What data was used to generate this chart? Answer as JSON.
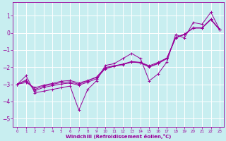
{
  "xlabel": "Windchill (Refroidissement éolien,°C)",
  "bg_color": "#c8eef0",
  "grid_color": "#ffffff",
  "line_color": "#990099",
  "xlim": [
    -0.5,
    23.5
  ],
  "ylim": [
    -5.5,
    1.8
  ],
  "xticks": [
    0,
    1,
    2,
    3,
    4,
    5,
    6,
    7,
    8,
    9,
    10,
    11,
    12,
    13,
    14,
    15,
    16,
    17,
    18,
    19,
    20,
    21,
    22,
    23
  ],
  "yticks": [
    -5,
    -4,
    -3,
    -2,
    -1,
    0,
    1
  ],
  "line1_x": [
    0,
    1,
    2,
    3,
    4,
    5,
    6,
    7,
    8,
    9,
    10,
    11,
    12,
    13,
    14,
    15,
    16,
    17,
    18,
    19,
    20,
    21,
    22,
    23
  ],
  "line1_y": [
    -3.0,
    -2.5,
    -3.5,
    -3.4,
    -3.3,
    -3.2,
    -3.1,
    -4.5,
    -3.3,
    -2.8,
    -1.9,
    -1.8,
    -1.5,
    -1.2,
    -1.5,
    -2.8,
    -2.4,
    -1.7,
    -0.1,
    -0.3,
    0.6,
    0.5,
    1.2,
    0.2
  ],
  "line2_x": [
    0,
    1,
    2,
    3,
    4,
    5,
    6,
    7,
    8,
    9,
    10,
    11,
    12,
    13,
    14,
    15,
    16,
    17,
    18,
    19,
    20,
    21,
    22,
    23
  ],
  "line2_y": [
    -3.0,
    -2.8,
    -3.3,
    -3.1,
    -3.0,
    -2.9,
    -2.85,
    -3.0,
    -2.8,
    -2.6,
    -2.1,
    -1.95,
    -1.85,
    -1.7,
    -1.75,
    -2.0,
    -1.8,
    -1.5,
    -0.3,
    -0.1,
    0.3,
    0.3,
    0.8,
    0.2
  ],
  "line3_x": [
    0,
    1,
    2,
    3,
    4,
    5,
    6,
    7,
    8,
    9,
    10,
    11,
    12,
    13,
    14,
    15,
    16,
    17,
    18,
    19,
    20,
    21,
    22,
    23
  ],
  "line3_y": [
    -3.0,
    -2.9,
    -3.2,
    -3.05,
    -2.95,
    -2.82,
    -2.78,
    -2.92,
    -2.78,
    -2.58,
    -2.02,
    -1.92,
    -1.82,
    -1.67,
    -1.72,
    -1.92,
    -1.72,
    -1.47,
    -0.27,
    -0.07,
    0.27,
    0.27,
    0.77,
    0.17
  ],
  "line4_x": [
    0,
    1,
    2,
    3,
    4,
    5,
    6,
    7,
    8,
    9,
    10,
    11,
    12,
    13,
    14,
    15,
    16,
    17,
    18,
    19,
    20,
    21,
    22,
    23
  ],
  "line4_y": [
    -3.0,
    -2.75,
    -3.38,
    -3.18,
    -3.08,
    -2.98,
    -2.93,
    -3.05,
    -2.88,
    -2.68,
    -2.08,
    -1.94,
    -1.84,
    -1.7,
    -1.74,
    -1.97,
    -1.77,
    -1.5,
    -0.29,
    -0.09,
    0.29,
    0.29,
    0.79,
    0.19
  ]
}
